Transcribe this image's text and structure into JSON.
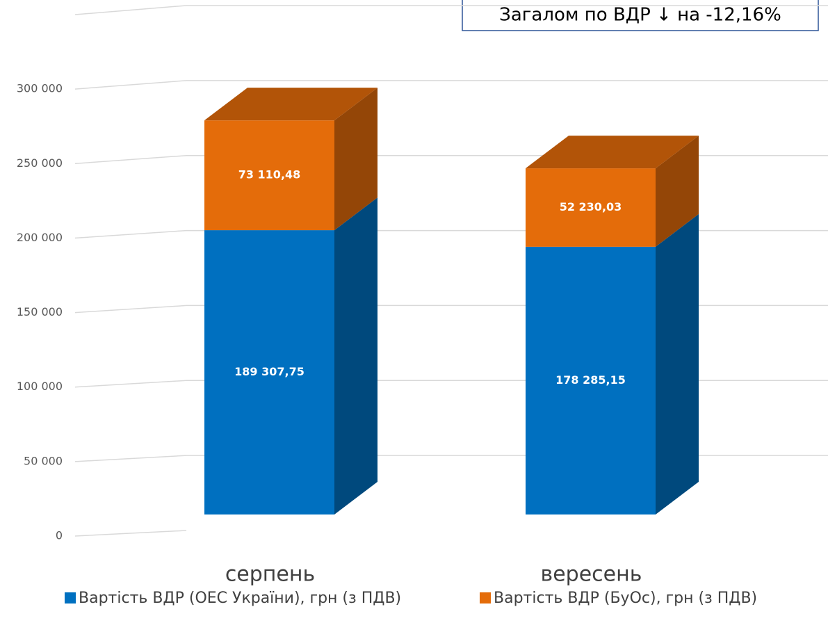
{
  "chart_data": {
    "type": "bar3d_stacked",
    "annotation": "Загалом по ВДР ↓ на -12,16%",
    "categories": [
      "серпень",
      "вересень"
    ],
    "series": [
      {
        "name": "Вартість ВДР (ОЕС України), грн (з ПДВ)",
        "color": "#0070c0",
        "values": [
          189307.75,
          178285.15
        ],
        "value_labels": [
          "189 307,75",
          "178 285,15"
        ]
      },
      {
        "name": "Вартість ВДР (БуОс), грн (з ПДВ)",
        "color": "#e46c0a",
        "values": [
          73110.48,
          52230.03
        ],
        "value_labels": [
          "73 110,48",
          "52 230,03"
        ]
      }
    ],
    "ylim": [
      0,
      350000
    ],
    "yticks": [
      0,
      {
        "value": 50000,
        "label": "50 000"
      },
      {
        "value": 100000,
        "label": "100 000"
      },
      {
        "value": 150000,
        "label": "150 000"
      },
      {
        "value": 200000,
        "label": "200 000"
      },
      {
        "value": 250000,
        "label": "250 000"
      },
      {
        "value": 300000,
        "label": "300 000"
      }
    ],
    "grid": true
  }
}
